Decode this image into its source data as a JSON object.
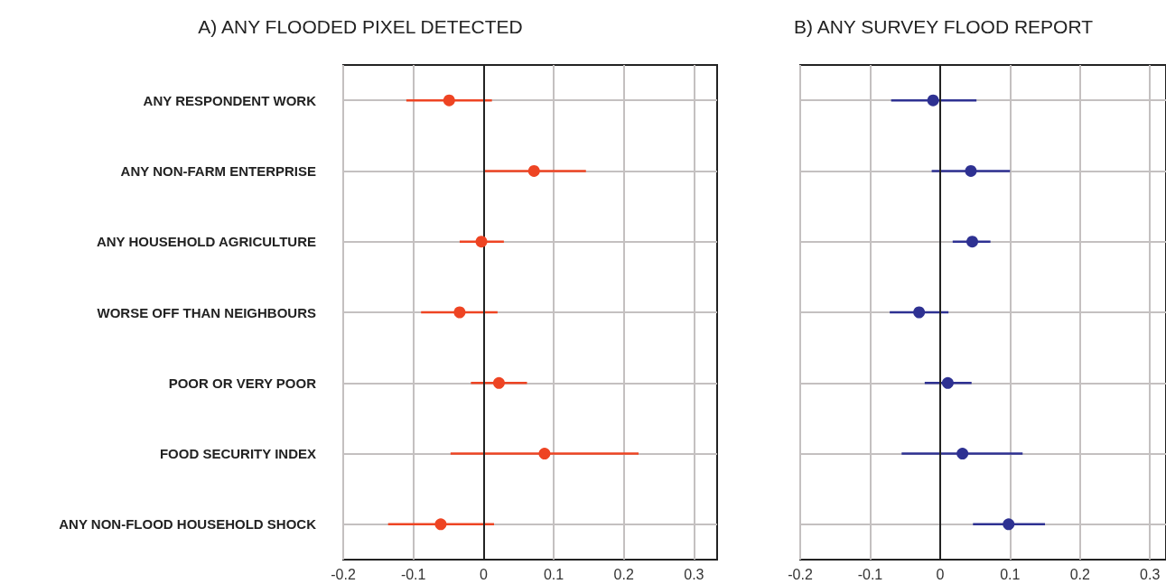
{
  "chart_data": [
    {
      "type": "scatter",
      "orientation": "horizontal",
      "title": "A) ANY FLOODED PIXEL DETECTED",
      "categories": [
        "ANY RESPONDENT WORK",
        "ANY NON-FARM ENTERPRISE",
        "ANY HOUSEHOLD AGRICULTURE",
        "WORSE OFF THAN NEIGHBOURS",
        "POOR OR VERY POOR",
        "FOOD SECURITY INDEX",
        "ANY NON-FLOOD HOUSEHOLD SHOCK"
      ],
      "series": [
        {
          "color": "#ee4423",
          "values": [
            -0.049,
            0.072,
            -0.003,
            -0.034,
            0.022,
            0.087,
            -0.061
          ],
          "errors": [
            [
              -0.11,
              0.012
            ],
            [
              0.0,
              0.146
            ],
            [
              -0.034,
              0.029
            ],
            [
              -0.089,
              0.02
            ],
            [
              -0.018,
              0.062
            ],
            [
              -0.047,
              0.221
            ],
            [
              -0.136,
              0.015
            ]
          ]
        }
      ],
      "xlim": [
        -0.2,
        0.333
      ],
      "xticks": [
        -0.2,
        -0.1,
        0,
        0.1,
        0.2,
        0.3
      ],
      "grid": true,
      "marker": "circle",
      "ref_lines": [
        {
          "axis": "x",
          "value": 0,
          "color": "#222222"
        }
      ]
    },
    {
      "type": "scatter",
      "orientation": "horizontal",
      "title": "B) ANY SURVEY FLOOD REPORT",
      "categories": [
        null,
        null,
        null,
        null,
        null,
        null,
        null
      ],
      "series": [
        {
          "color": "#2e3192",
          "values": [
            -0.01,
            0.044,
            0.046,
            -0.03,
            0.011,
            0.032,
            0.098
          ],
          "errors": [
            [
              -0.07,
              0.052
            ],
            [
              -0.012,
              0.1
            ],
            [
              0.018,
              0.072
            ],
            [
              -0.072,
              0.012
            ],
            [
              -0.022,
              0.045
            ],
            [
              -0.055,
              0.118
            ],
            [
              0.047,
              0.15
            ]
          ]
        }
      ],
      "xlim": [
        -0.2,
        0.323
      ],
      "xticks": [
        -0.2,
        -0.1,
        0,
        0.1,
        0.2,
        0.3
      ],
      "grid": true,
      "marker": "circle",
      "tick_labels": "x",
      "ref_lines": [
        {
          "axis": "x",
          "value": 0,
          "color": "#222222"
        }
      ]
    }
  ]
}
